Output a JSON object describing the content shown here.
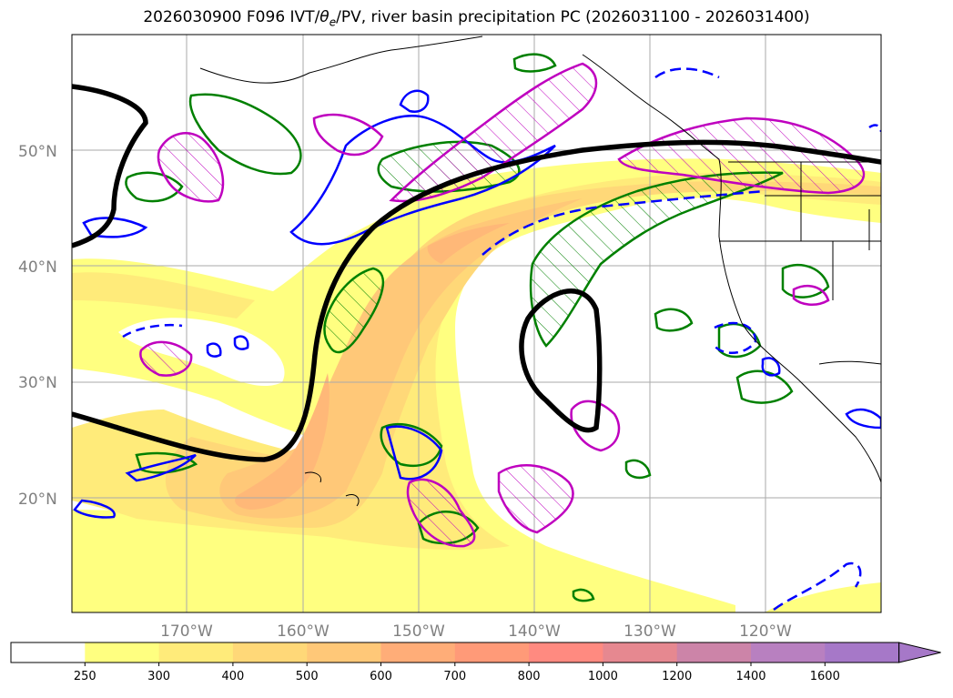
{
  "title": {
    "prefix": "2026030900 F096 IVT/",
    "theta": "θ",
    "theta_sub": "e",
    "suffix": "/PV, river basin precipitation PC (2026031100 - 2026031400)"
  },
  "axes": {
    "lat_labels": [
      "50°N",
      "40°N",
      "30°N",
      "20°N"
    ],
    "lon_labels": [
      "170°W",
      "160°W",
      "150°W",
      "140°W",
      "130°W",
      "120°W"
    ]
  },
  "colorbar": {
    "labels": [
      "250",
      "300",
      "400",
      "500",
      "600",
      "700",
      "800",
      "1000",
      "1200",
      "1400",
      "1600"
    ],
    "colors": [
      "#ffffff",
      "#ffff80",
      "#ffeb7a",
      "#ffd878",
      "#ffc878",
      "#ffad78",
      "#ff9a78",
      "#ff8a80",
      "#e68890",
      "#cc84a8",
      "#b880c0",
      "#a678c8"
    ]
  },
  "colors": {
    "pv_contour": "#000000",
    "theta_e_pos": "#0000ff",
    "precip_contour": "#008000",
    "pc_contour": "#bf00bf",
    "coastline": "#000000",
    "gridline": "#aaaaaa"
  }
}
